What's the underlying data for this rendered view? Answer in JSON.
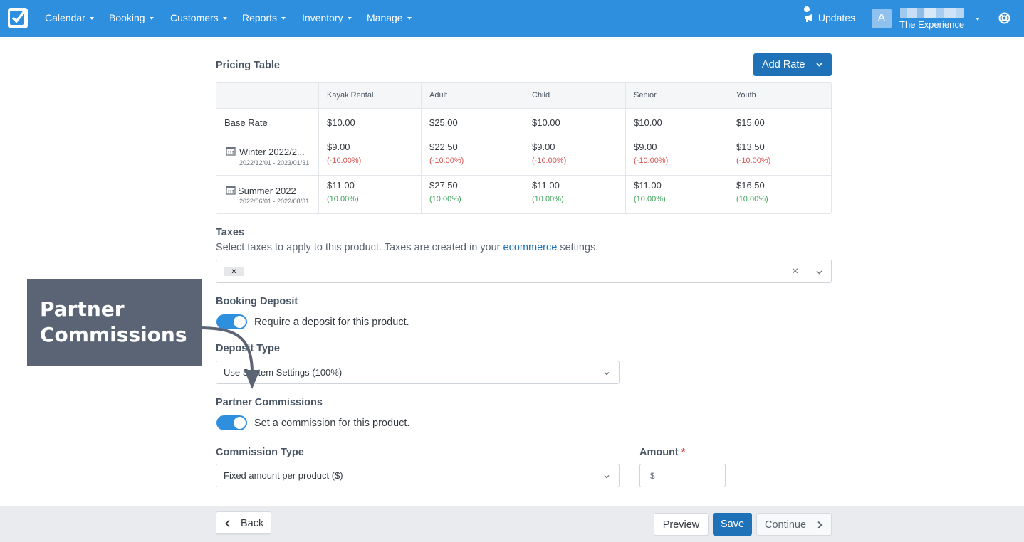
{
  "nav": {
    "menu": [
      "Calendar",
      "Booking",
      "Customers",
      "Reports",
      "Inventory",
      "Manage"
    ],
    "updates": "Updates",
    "avatar_initial": "A",
    "account_name": "The Experience"
  },
  "pricing": {
    "title": "Pricing Table",
    "add_rate": "Add Rate",
    "columns": [
      "Kayak Rental",
      "Adult",
      "Child",
      "Senior",
      "Youth"
    ],
    "rows": [
      {
        "label": "Base Rate",
        "dates": "",
        "values": [
          "$10.00",
          "$25.00",
          "$10.00",
          "$10.00",
          "$15.00"
        ],
        "pcts": [
          "",
          "",
          "",
          "",
          ""
        ]
      },
      {
        "label": "Winter 2022/2...",
        "dates": "2022/12/01 - 2023/01/31",
        "values": [
          "$9.00",
          "$22.50",
          "$9.00",
          "$9.00",
          "$13.50"
        ],
        "pcts": [
          "(-10.00%)",
          "(-10.00%)",
          "(-10.00%)",
          "(-10.00%)",
          "(-10.00%)"
        ]
      },
      {
        "label": "Summer 2022",
        "dates": "2022/06/01 - 2022/08/31",
        "values": [
          "$11.00",
          "$27.50",
          "$11.00",
          "$11.00",
          "$16.50"
        ],
        "pcts": [
          "(10.00%)",
          "(10.00%)",
          "(10.00%)",
          "(10.00%)",
          "(10.00%)"
        ]
      }
    ]
  },
  "taxes": {
    "title": "Taxes",
    "help_before": "Select taxes to apply to this product. Taxes are created in your ",
    "help_link": "ecommerce",
    "help_after": " settings.",
    "chip": "×",
    "clear": "×"
  },
  "deposit": {
    "title": "Booking Deposit",
    "toggle_label": "Require a deposit for this product.",
    "type_title": "Deposit Type",
    "type_value": "Use System Settings (100%)"
  },
  "commissions": {
    "title": "Partner Commissions",
    "toggle_label": "Set a commission for this product.",
    "type_title": "Commission Type",
    "type_value": "Fixed amount per product ($)",
    "amount_title": "Amount",
    "amount_required": "*",
    "amount_prefix": "$"
  },
  "footer": {
    "back": "Back",
    "preview": "Preview",
    "save": "Save",
    "continue": "Continue"
  },
  "annotation": {
    "line1": "Partner",
    "line2": "Commissions"
  },
  "colors": {
    "nav": "#2e8fde",
    "primary": "#1f72b8",
    "negative": "#d9534f",
    "positive": "#3fa35a",
    "callout": "#5a6474"
  }
}
